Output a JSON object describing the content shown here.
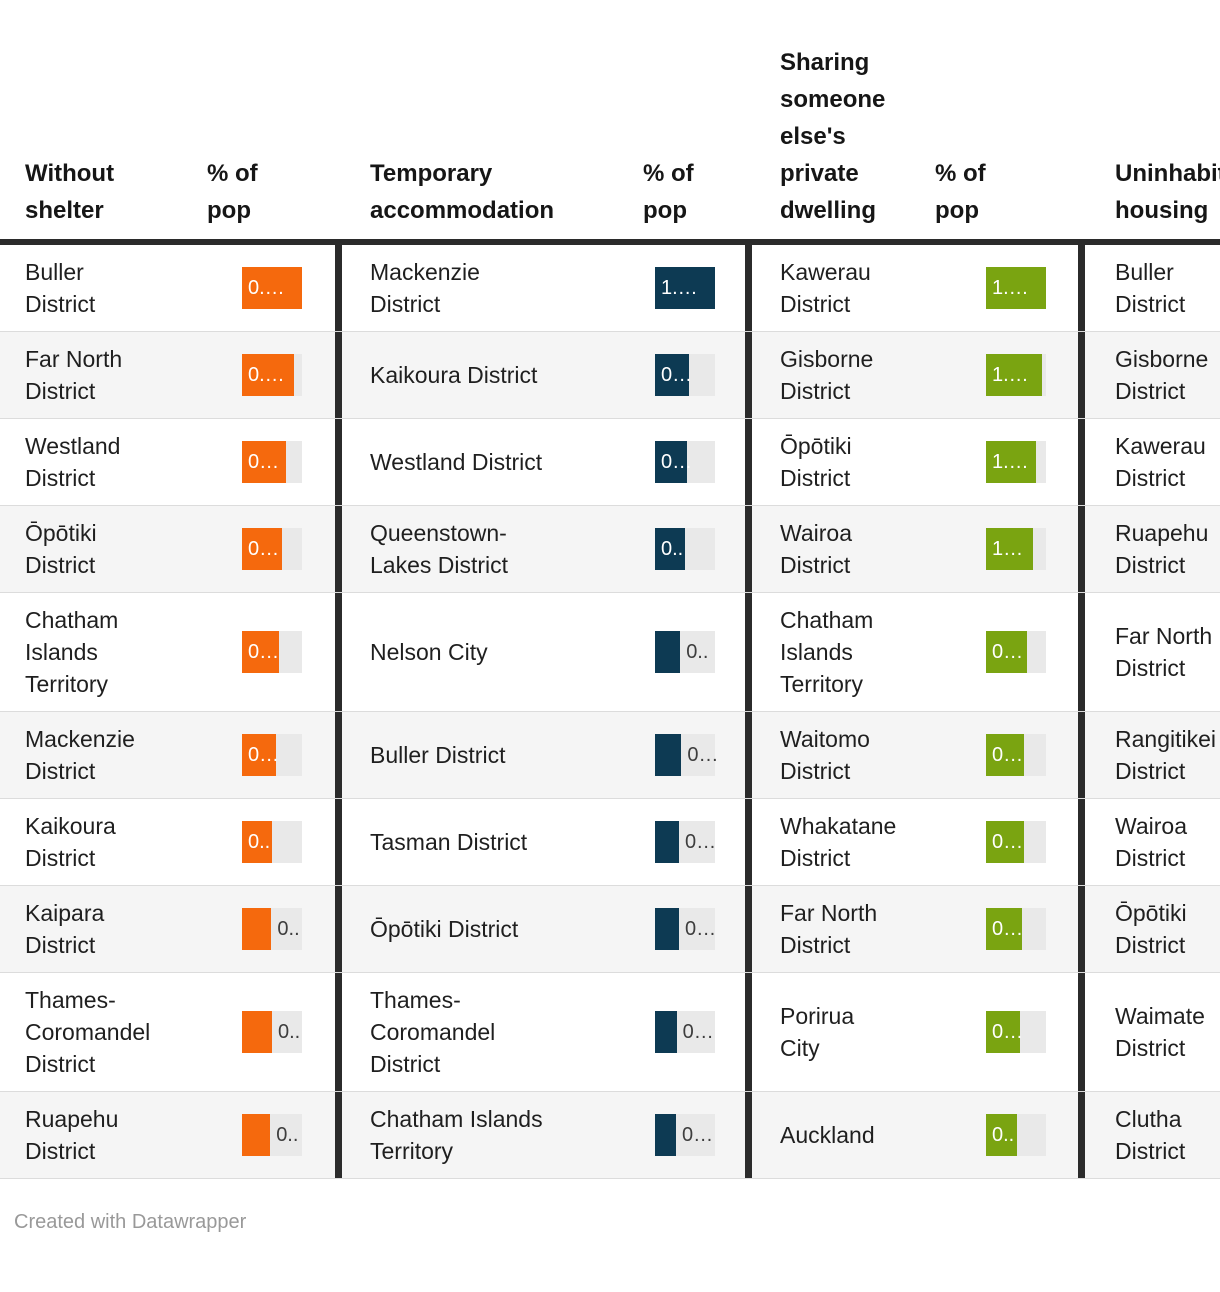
{
  "colors": {
    "without_shelter_bar": "#f5690d",
    "temporary_accommodation_bar": "#0d3a53",
    "sharing_private_dwelling_bar": "#7aa411",
    "bar_track": "#e9e9e9",
    "row_stripe": "#f5f5f5",
    "separator": "#2b2b2b"
  },
  "chart_data": {
    "type": "table",
    "columns": [
      "Without shelter",
      "% of pop",
      "Temporary accommodation",
      "% of pop",
      "Sharing someone else's private dwelling",
      "% of pop",
      "Uninhabitable housing"
    ],
    "rows": [
      {
        "without_shelter": {
          "district": "Buller District",
          "value_label": "0.…",
          "bar_fraction": 1.0,
          "label_inside": true
        },
        "temporary_accommodation": {
          "district": "Mackenzie District",
          "value_label": "1.…",
          "bar_fraction": 1.0,
          "label_inside": true
        },
        "sharing_private_dwelling": {
          "district": "Kawerau District",
          "value_label": "1.…",
          "bar_fraction": 1.0,
          "label_inside": true
        },
        "uninhabitable_housing": {
          "district": "Buller District"
        }
      },
      {
        "without_shelter": {
          "district": "Far North District",
          "value_label": "0.…",
          "bar_fraction": 0.87,
          "label_inside": true
        },
        "temporary_accommodation": {
          "district": "Kaikoura District",
          "value_label": "0…",
          "bar_fraction": 0.57,
          "label_inside": true
        },
        "sharing_private_dwelling": {
          "district": "Gisborne District",
          "value_label": "1.…",
          "bar_fraction": 0.94,
          "label_inside": true
        },
        "uninhabitable_housing": {
          "district": "Gisborne District"
        }
      },
      {
        "without_shelter": {
          "district": "Westland District",
          "value_label": "0…",
          "bar_fraction": 0.73,
          "label_inside": true
        },
        "temporary_accommodation": {
          "district": "Westland District",
          "value_label": "0…",
          "bar_fraction": 0.54,
          "label_inside": true
        },
        "sharing_private_dwelling": {
          "district": "Ōpōtiki District",
          "value_label": "1.…",
          "bar_fraction": 0.83,
          "label_inside": true
        },
        "uninhabitable_housing": {
          "district": "Kawerau District"
        }
      },
      {
        "without_shelter": {
          "district": "Ōpōtiki District",
          "value_label": "0…",
          "bar_fraction": 0.67,
          "label_inside": true
        },
        "temporary_accommodation": {
          "district": "Queenstown-Lakes District",
          "value_label": "0..",
          "bar_fraction": 0.5,
          "label_inside": true
        },
        "sharing_private_dwelling": {
          "district": "Wairoa District",
          "value_label": "1…",
          "bar_fraction": 0.78,
          "label_inside": true
        },
        "uninhabitable_housing": {
          "district": "Ruapehu District"
        }
      },
      {
        "without_shelter": {
          "district": "Chatham Islands Territory",
          "value_label": "0…",
          "bar_fraction": 0.61,
          "label_inside": true
        },
        "temporary_accommodation": {
          "district": "Nelson City",
          "value_label": "0..",
          "bar_fraction": 0.42,
          "label_inside": false
        },
        "sharing_private_dwelling": {
          "district": "Chatham Islands Territory",
          "value_label": "0…",
          "bar_fraction": 0.69,
          "label_inside": true
        },
        "uninhabitable_housing": {
          "district": "Far North District"
        }
      },
      {
        "without_shelter": {
          "district": "Mackenzie District",
          "value_label": "0…",
          "bar_fraction": 0.57,
          "label_inside": true
        },
        "temporary_accommodation": {
          "district": "Buller District",
          "value_label": "0…",
          "bar_fraction": 0.44,
          "label_inside": false
        },
        "sharing_private_dwelling": {
          "district": "Waitomo District",
          "value_label": "0…",
          "bar_fraction": 0.64,
          "label_inside": true
        },
        "uninhabitable_housing": {
          "district": "Rangitikei District"
        }
      },
      {
        "without_shelter": {
          "district": "Kaikoura District",
          "value_label": "0..",
          "bar_fraction": 0.5,
          "label_inside": true
        },
        "temporary_accommodation": {
          "district": "Tasman District",
          "value_label": "0…",
          "bar_fraction": 0.4,
          "label_inside": false
        },
        "sharing_private_dwelling": {
          "district": "Whakatane District",
          "value_label": "0…",
          "bar_fraction": 0.64,
          "label_inside": true
        },
        "uninhabitable_housing": {
          "district": "Wairoa District"
        }
      },
      {
        "without_shelter": {
          "district": "Kaipara District",
          "value_label": "0..",
          "bar_fraction": 0.49,
          "label_inside": false
        },
        "temporary_accommodation": {
          "district": "Ōpōtiki District",
          "value_label": "0…",
          "bar_fraction": 0.4,
          "label_inside": false
        },
        "sharing_private_dwelling": {
          "district": "Far North District",
          "value_label": "0…",
          "bar_fraction": 0.6,
          "label_inside": true
        },
        "uninhabitable_housing": {
          "district": "Ōpōtiki District"
        }
      },
      {
        "without_shelter": {
          "district": "Thames-Coromandel District",
          "value_label": "0..",
          "bar_fraction": 0.5,
          "label_inside": false
        },
        "temporary_accommodation": {
          "district": "Thames-Coromandel District",
          "value_label": "0…",
          "bar_fraction": 0.36,
          "label_inside": false
        },
        "sharing_private_dwelling": {
          "district": "Porirua City",
          "value_label": "0…",
          "bar_fraction": 0.57,
          "label_inside": true
        },
        "uninhabitable_housing": {
          "district": "Waimate District"
        }
      },
      {
        "without_shelter": {
          "district": "Ruapehu District",
          "value_label": "0..",
          "bar_fraction": 0.47,
          "label_inside": false
        },
        "temporary_accommodation": {
          "district": "Chatham Islands Territory",
          "value_label": "0…",
          "bar_fraction": 0.35,
          "label_inside": false
        },
        "sharing_private_dwelling": {
          "district": "Auckland",
          "value_label": "0..",
          "bar_fraction": 0.51,
          "label_inside": true
        },
        "uninhabitable_housing": {
          "district": "Clutha District"
        }
      }
    ]
  },
  "footer": {
    "credit": "Created with Datawrapper"
  }
}
